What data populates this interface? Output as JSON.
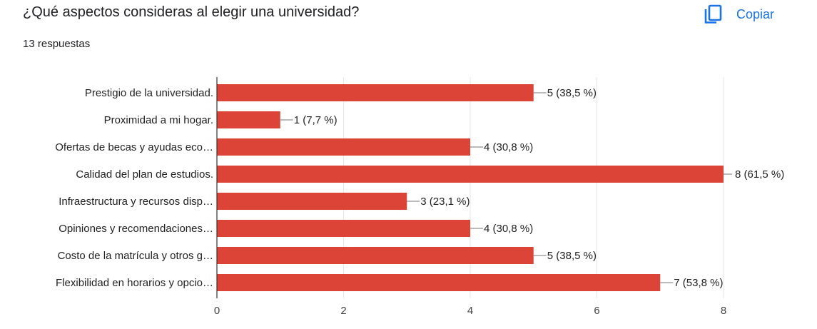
{
  "header": {
    "question": "¿Qué aspectos consideras al elegir una universidad?",
    "responses": "13 respuestas",
    "copy_label": "Copiar",
    "copy_icon": "copy-icon"
  },
  "colors": {
    "bar": "#db4437",
    "accent": "#1a73e8"
  },
  "chart_data": {
    "type": "bar",
    "orientation": "horizontal",
    "categories": [
      "Prestigio de la universidad.",
      "Proximidad a mi hogar.",
      "Ofertas de becas y ayudas eco…",
      "Calidad del plan de estudios.",
      "Infraestructura y recursos disp…",
      "Opiniones y recomendaciones…",
      "Costo de la matrícula y otros g…",
      "Flexibilidad en horarios y opcio…"
    ],
    "values": [
      5,
      1,
      4,
      8,
      3,
      4,
      5,
      7
    ],
    "data_labels": [
      "5 (38,5 %)",
      "1 (7,7 %)",
      "4 (30,8 %)",
      "8 (61,5 %)",
      "3 (23,1 %)",
      "4 (30,8 %)",
      "5 (38,5 %)",
      "7 (53,8 %)"
    ],
    "x_ticks": [
      "0",
      "2",
      "4",
      "6",
      "8"
    ],
    "xlim": [
      0,
      8
    ],
    "grid": true
  }
}
